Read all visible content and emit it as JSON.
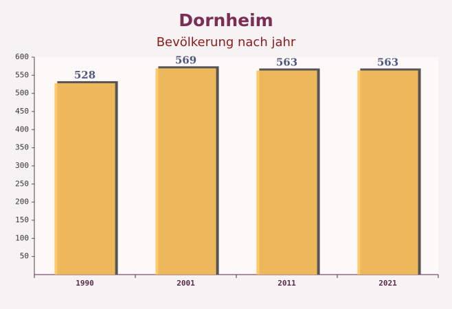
{
  "chart_data": {
    "type": "bar",
    "title": "Dornheim",
    "subtitle": "Bevölkerung nach jahr",
    "categories": [
      "1990",
      "2001",
      "2011",
      "2021"
    ],
    "values": [
      528,
      569,
      563,
      563
    ],
    "color": "#fdc35c",
    "ylim": [
      0,
      600
    ],
    "yticks": [
      50,
      100,
      150,
      200,
      250,
      300,
      350,
      400,
      450,
      500,
      550,
      600
    ]
  }
}
